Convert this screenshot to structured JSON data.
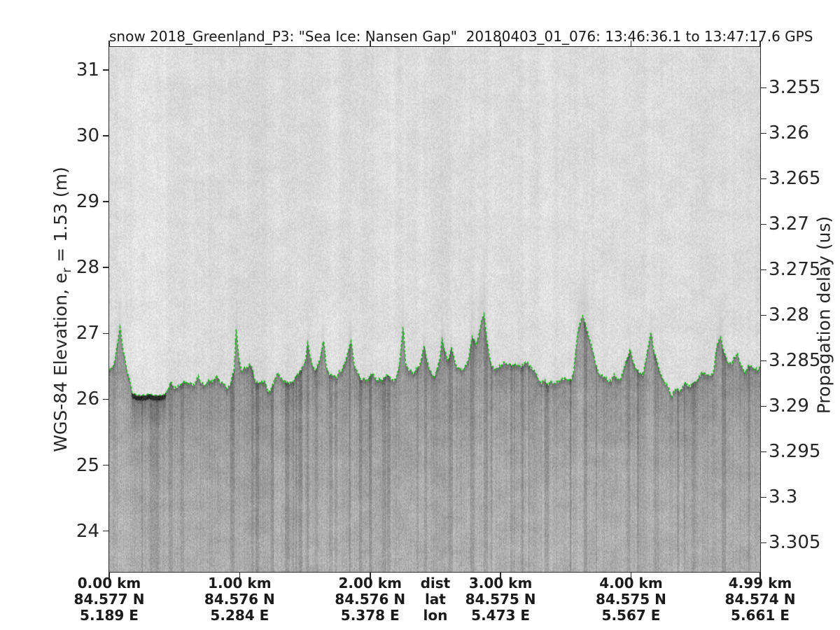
{
  "title": "snow 2018_Greenland_P3: \"Sea Ice: Nansen Gap\"  20180403_01_076: 13:46:36.1 to 13:47:17.6 GPS",
  "left_axis": {
    "label_prefix": "WGS-84 Elevation, e",
    "label_sub": "r",
    "label_suffix": " = 1.53 (m)",
    "ticks": [
      31,
      30,
      29,
      28,
      27,
      26,
      25,
      24
    ]
  },
  "right_axis": {
    "label": "Propagation delay (us)",
    "ticks": [
      "3.255",
      "3.26",
      "3.265",
      "3.27",
      "3.275",
      "3.28",
      "3.285",
      "3.29",
      "3.295",
      "3.3",
      "3.305"
    ]
  },
  "bottom_axis": {
    "columns": [
      {
        "km": 0,
        "dist": "0.00 km",
        "lat": "84.577 N",
        "lon": "5.189 E"
      },
      {
        "km": 1,
        "dist": "1.00 km",
        "lat": "84.576 N",
        "lon": "5.284 E"
      },
      {
        "km": 2,
        "dist": "2.00 km",
        "lat": "84.576 N",
        "lon": "5.378 E"
      },
      {
        "km": 3,
        "dist": "3.00 km",
        "lat": "84.575 N",
        "lon": "5.473 E"
      },
      {
        "km": 4,
        "dist": "4.00 km",
        "lat": "84.575 N",
        "lon": "5.567 E"
      },
      {
        "km": 4.99,
        "dist": "4.99 km",
        "lat": "84.574 N",
        "lon": "5.661 E"
      }
    ],
    "center_labels": {
      "km_center": 2.5,
      "dist": "dist",
      "lat": "lat",
      "lon": "lon"
    }
  },
  "chart_data": {
    "type": "heatmap",
    "subtype": "radar-echogram",
    "x_range_km": [
      0,
      4.99
    ],
    "elevation_range_m": [
      31.35,
      23.38
    ],
    "delay_range_us": [
      3.2505,
      3.3082
    ],
    "elevation_ticks_m": [
      31,
      30,
      29,
      28,
      27,
      26,
      25,
      24
    ],
    "delay_ticks_us": [
      3.255,
      3.26,
      3.265,
      3.27,
      3.275,
      3.28,
      3.285,
      3.29,
      3.295,
      3.3,
      3.305
    ],
    "surface_line_color": "#0fc40f",
    "background_tone": "#dcdcdc",
    "lead_km": [
      0.17,
      0.43
    ],
    "lead_elevation_m": 26.07,
    "surface_profile_km_elev": [
      [
        0.0,
        26.45
      ],
      [
        0.03,
        26.5
      ],
      [
        0.05,
        26.7
      ],
      [
        0.08,
        27.1
      ],
      [
        0.1,
        26.8
      ],
      [
        0.13,
        26.5
      ],
      [
        0.155,
        26.25
      ],
      [
        0.17,
        26.1
      ],
      [
        0.21,
        26.07
      ],
      [
        0.26,
        26.06
      ],
      [
        0.32,
        26.07
      ],
      [
        0.37,
        26.06
      ],
      [
        0.42,
        26.08
      ],
      [
        0.45,
        26.16
      ],
      [
        0.47,
        26.28
      ],
      [
        0.49,
        26.18
      ],
      [
        0.53,
        26.22
      ],
      [
        0.57,
        26.33
      ],
      [
        0.61,
        26.22
      ],
      [
        0.65,
        26.25
      ],
      [
        0.68,
        26.35
      ],
      [
        0.72,
        26.25
      ],
      [
        0.75,
        26.28
      ],
      [
        0.79,
        26.3
      ],
      [
        0.82,
        26.38
      ],
      [
        0.85,
        26.28
      ],
      [
        0.9,
        26.18
      ],
      [
        0.93,
        26.25
      ],
      [
        0.955,
        26.45
      ],
      [
        0.97,
        27.05
      ],
      [
        0.99,
        26.6
      ],
      [
        1.01,
        26.42
      ],
      [
        1.04,
        26.45
      ],
      [
        1.08,
        26.52
      ],
      [
        1.11,
        26.3
      ],
      [
        1.15,
        26.22
      ],
      [
        1.19,
        26.25
      ],
      [
        1.23,
        26.12
      ],
      [
        1.27,
        26.3
      ],
      [
        1.29,
        26.42
      ],
      [
        1.33,
        26.3
      ],
      [
        1.36,
        26.25
      ],
      [
        1.4,
        26.28
      ],
      [
        1.44,
        26.38
      ],
      [
        1.47,
        26.42
      ],
      [
        1.5,
        26.6
      ],
      [
        1.52,
        26.9
      ],
      [
        1.55,
        26.6
      ],
      [
        1.58,
        26.45
      ],
      [
        1.61,
        26.6
      ],
      [
        1.64,
        26.92
      ],
      [
        1.66,
        26.5
      ],
      [
        1.7,
        26.38
      ],
      [
        1.74,
        26.32
      ],
      [
        1.78,
        26.45
      ],
      [
        1.81,
        26.6
      ],
      [
        1.85,
        26.88
      ],
      [
        1.88,
        26.45
      ],
      [
        1.92,
        26.32
      ],
      [
        1.96,
        26.28
      ],
      [
        2.01,
        26.38
      ],
      [
        2.05,
        26.32
      ],
      [
        2.09,
        26.28
      ],
      [
        2.14,
        26.38
      ],
      [
        2.18,
        26.3
      ],
      [
        2.22,
        26.45
      ],
      [
        2.25,
        27.15
      ],
      [
        2.27,
        26.55
      ],
      [
        2.32,
        26.4
      ],
      [
        2.36,
        26.45
      ],
      [
        2.39,
        26.6
      ],
      [
        2.41,
        26.82
      ],
      [
        2.45,
        26.45
      ],
      [
        2.49,
        26.35
      ],
      [
        2.53,
        26.6
      ],
      [
        2.55,
        26.95
      ],
      [
        2.59,
        26.55
      ],
      [
        2.62,
        26.75
      ],
      [
        2.66,
        26.5
      ],
      [
        2.7,
        26.45
      ],
      [
        2.75,
        26.6
      ],
      [
        2.78,
        27.0
      ],
      [
        2.81,
        26.8
      ],
      [
        2.84,
        27.1
      ],
      [
        2.87,
        27.28
      ],
      [
        2.89,
        26.9
      ],
      [
        2.92,
        26.55
      ],
      [
        2.95,
        26.45
      ],
      [
        2.98,
        26.52
      ],
      [
        3.03,
        26.58
      ],
      [
        3.07,
        26.5
      ],
      [
        3.11,
        26.55
      ],
      [
        3.15,
        26.52
      ],
      [
        3.2,
        26.55
      ],
      [
        3.24,
        26.45
      ],
      [
        3.28,
        26.32
      ],
      [
        3.33,
        26.28
      ],
      [
        3.37,
        26.25
      ],
      [
        3.41,
        26.28
      ],
      [
        3.46,
        26.25
      ],
      [
        3.5,
        26.28
      ],
      [
        3.54,
        26.3
      ],
      [
        3.56,
        26.5
      ],
      [
        3.59,
        27.0
      ],
      [
        3.63,
        27.28
      ],
      [
        3.66,
        27.05
      ],
      [
        3.69,
        26.85
      ],
      [
        3.72,
        26.6
      ],
      [
        3.76,
        26.4
      ],
      [
        3.79,
        26.32
      ],
      [
        3.83,
        26.3
      ],
      [
        3.87,
        26.35
      ],
      [
        3.92,
        26.3
      ],
      [
        3.95,
        26.5
      ],
      [
        3.99,
        26.75
      ],
      [
        4.02,
        26.55
      ],
      [
        4.06,
        26.4
      ],
      [
        4.09,
        26.35
      ],
      [
        4.12,
        26.7
      ],
      [
        4.15,
        26.98
      ],
      [
        4.17,
        26.7
      ],
      [
        4.21,
        26.45
      ],
      [
        4.25,
        26.3
      ],
      [
        4.28,
        26.2
      ],
      [
        4.31,
        26.08
      ],
      [
        4.35,
        26.18
      ],
      [
        4.38,
        26.15
      ],
      [
        4.41,
        26.22
      ],
      [
        4.44,
        26.18
      ],
      [
        4.49,
        26.25
      ],
      [
        4.53,
        26.38
      ],
      [
        4.56,
        26.42
      ],
      [
        4.59,
        26.3
      ],
      [
        4.63,
        26.45
      ],
      [
        4.66,
        26.85
      ],
      [
        4.68,
        27.0
      ],
      [
        4.71,
        26.75
      ],
      [
        4.74,
        26.55
      ],
      [
        4.78,
        26.6
      ],
      [
        4.81,
        26.72
      ],
      [
        4.84,
        26.55
      ],
      [
        4.87,
        26.45
      ],
      [
        4.9,
        26.5
      ],
      [
        4.94,
        26.4
      ],
      [
        4.97,
        26.42
      ],
      [
        4.99,
        26.5
      ]
    ]
  }
}
